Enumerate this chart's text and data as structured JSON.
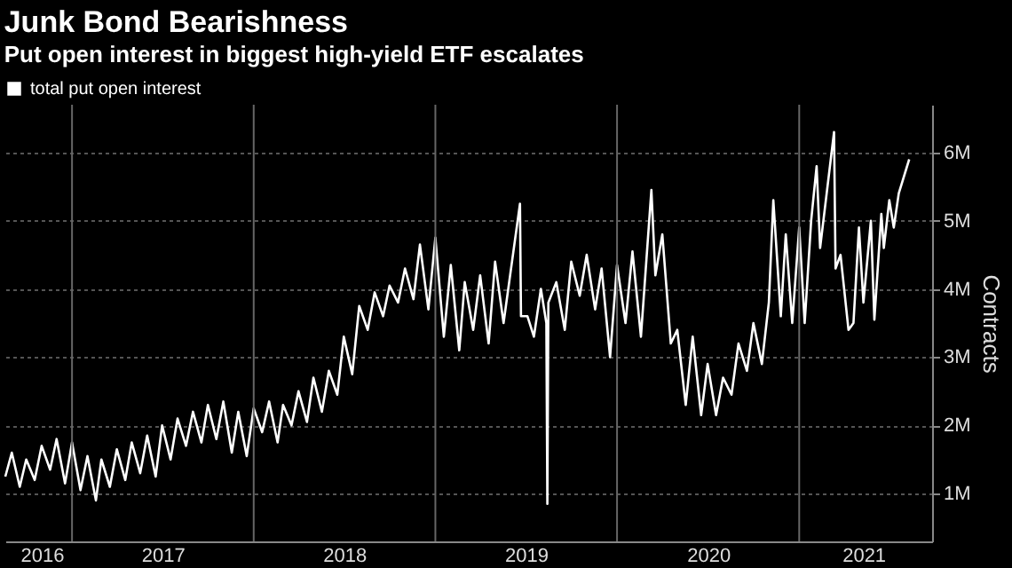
{
  "chart_data": {
    "type": "line",
    "title": "Junk Bond Bearishness",
    "subtitle": "Put open interest in biggest high-yield ETF escalates",
    "ylabel": "Contracts",
    "x": [
      "2016-08-20",
      "2016-09-02",
      "2016-09-18",
      "2016-10-01",
      "2016-10-18",
      "2016-11-01",
      "2016-11-18",
      "2016-12-01",
      "2016-12-18",
      "2017-01-01",
      "2017-01-18",
      "2017-02-01",
      "2017-02-18",
      "2017-03-01",
      "2017-03-18",
      "2017-04-01",
      "2017-04-18",
      "2017-05-01",
      "2017-05-18",
      "2017-06-01",
      "2017-06-18",
      "2017-07-01",
      "2017-07-18",
      "2017-08-01",
      "2017-08-18",
      "2017-09-01",
      "2017-09-18",
      "2017-10-01",
      "2017-10-18",
      "2017-11-01",
      "2017-11-18",
      "2017-12-01",
      "2017-12-18",
      "2018-01-01",
      "2018-01-18",
      "2018-02-01",
      "2018-02-18",
      "2018-03-01",
      "2018-03-18",
      "2018-04-01",
      "2018-04-18",
      "2018-05-01",
      "2018-05-18",
      "2018-06-01",
      "2018-06-18",
      "2018-07-01",
      "2018-07-18",
      "2018-08-01",
      "2018-08-18",
      "2018-09-01",
      "2018-09-18",
      "2018-10-01",
      "2018-10-18",
      "2018-11-01",
      "2018-11-18",
      "2018-12-01",
      "2018-12-18",
      "2019-01-01",
      "2019-01-18",
      "2019-02-01",
      "2019-02-18",
      "2019-03-01",
      "2019-03-18",
      "2019-04-01",
      "2019-04-18",
      "2019-05-01",
      "2019-05-18",
      "2019-06-20",
      "2019-06-22",
      "2019-07-05",
      "2019-07-18",
      "2019-08-01",
      "2019-08-12",
      "2019-08-14",
      "2019-08-16",
      "2019-09-01",
      "2019-09-18",
      "2019-10-01",
      "2019-10-18",
      "2019-11-01",
      "2019-11-18",
      "2019-12-01",
      "2019-12-18",
      "2020-01-01",
      "2020-01-18",
      "2020-02-01",
      "2020-02-18",
      "2020-03-10",
      "2020-03-18",
      "2020-04-01",
      "2020-04-18",
      "2020-05-01",
      "2020-05-18",
      "2020-06-01",
      "2020-06-18",
      "2020-07-01",
      "2020-07-18",
      "2020-08-01",
      "2020-08-18",
      "2020-09-01",
      "2020-09-18",
      "2020-10-01",
      "2020-10-18",
      "2020-11-01",
      "2020-11-10",
      "2020-11-25",
      "2020-12-05",
      "2020-12-18",
      "2021-01-01",
      "2021-01-12",
      "2021-01-25",
      "2021-02-05",
      "2021-02-12",
      "2021-03-12",
      "2021-03-15",
      "2021-03-25",
      "2021-04-10",
      "2021-04-20",
      "2021-05-01",
      "2021-05-10",
      "2021-05-25",
      "2021-06-01",
      "2021-06-15",
      "2021-06-20",
      "2021-07-01",
      "2021-07-10",
      "2021-07-20",
      "2021-08-10"
    ],
    "series": [
      {
        "name": "total put open interest",
        "color": "#ffffff",
        "values": [
          1.25,
          1.6,
          1.1,
          1.5,
          1.2,
          1.7,
          1.35,
          1.8,
          1.15,
          1.75,
          1.05,
          1.55,
          0.9,
          1.5,
          1.1,
          1.65,
          1.2,
          1.75,
          1.3,
          1.85,
          1.25,
          2.0,
          1.5,
          2.1,
          1.7,
          2.2,
          1.75,
          2.3,
          1.8,
          2.35,
          1.6,
          2.2,
          1.55,
          2.25,
          1.9,
          2.35,
          1.75,
          2.3,
          2.0,
          2.5,
          2.05,
          2.7,
          2.2,
          2.8,
          2.45,
          3.3,
          2.75,
          3.75,
          3.4,
          3.95,
          3.6,
          4.05,
          3.8,
          4.3,
          3.85,
          4.65,
          3.7,
          4.75,
          3.3,
          4.35,
          3.1,
          4.1,
          3.4,
          4.2,
          3.2,
          4.4,
          3.5,
          5.25,
          3.6,
          3.6,
          3.3,
          4.0,
          3.5,
          0.85,
          3.8,
          4.1,
          3.4,
          4.4,
          3.9,
          4.5,
          3.7,
          4.3,
          3.0,
          4.35,
          3.5,
          4.55,
          3.3,
          5.45,
          4.2,
          4.8,
          3.2,
          3.4,
          2.3,
          3.3,
          2.15,
          2.9,
          2.15,
          2.7,
          2.45,
          3.2,
          2.8,
          3.5,
          2.9,
          3.8,
          5.3,
          3.6,
          4.8,
          3.5,
          4.9,
          3.5,
          5.0,
          5.8,
          4.6,
          6.3,
          4.3,
          4.5,
          3.4,
          3.5,
          4.9,
          3.8,
          5.0,
          3.55,
          5.1,
          4.6,
          5.3,
          4.9,
          5.4,
          5.9
        ]
      }
    ],
    "xlim": [
      "2016-08-20",
      "2021-09-25"
    ],
    "xticks": [
      {
        "value": "2016-11-01",
        "label": "2016"
      },
      {
        "value": "2017-07-02",
        "label": "2017"
      },
      {
        "value": "2018-07-02",
        "label": "2018"
      },
      {
        "value": "2019-07-02",
        "label": "2019"
      },
      {
        "value": "2020-07-02",
        "label": "2020"
      },
      {
        "value": "2021-05-10",
        "label": "2021"
      }
    ],
    "ylim": [
      0.3,
      6.7
    ],
    "yticks": [
      {
        "value": 1,
        "label": "1M"
      },
      {
        "value": 2,
        "label": "2M"
      },
      {
        "value": 3,
        "label": "3M"
      },
      {
        "value": 4,
        "label": "4M"
      },
      {
        "value": 5,
        "label": "5M"
      },
      {
        "value": 6,
        "label": "6M"
      }
    ],
    "ref_lines": [
      {
        "axis": "x",
        "value": "2017-01-01",
        "color": "#666666"
      },
      {
        "axis": "x",
        "value": "2018-01-01",
        "color": "#666666"
      },
      {
        "axis": "x",
        "value": "2019-01-01",
        "color": "#666666"
      },
      {
        "axis": "x",
        "value": "2020-01-01",
        "color": "#666666"
      },
      {
        "axis": "x",
        "value": "2021-01-01",
        "color": "#666666"
      }
    ],
    "grid": "y",
    "legend": "top left",
    "marker": "none",
    "line_style": "solid"
  }
}
